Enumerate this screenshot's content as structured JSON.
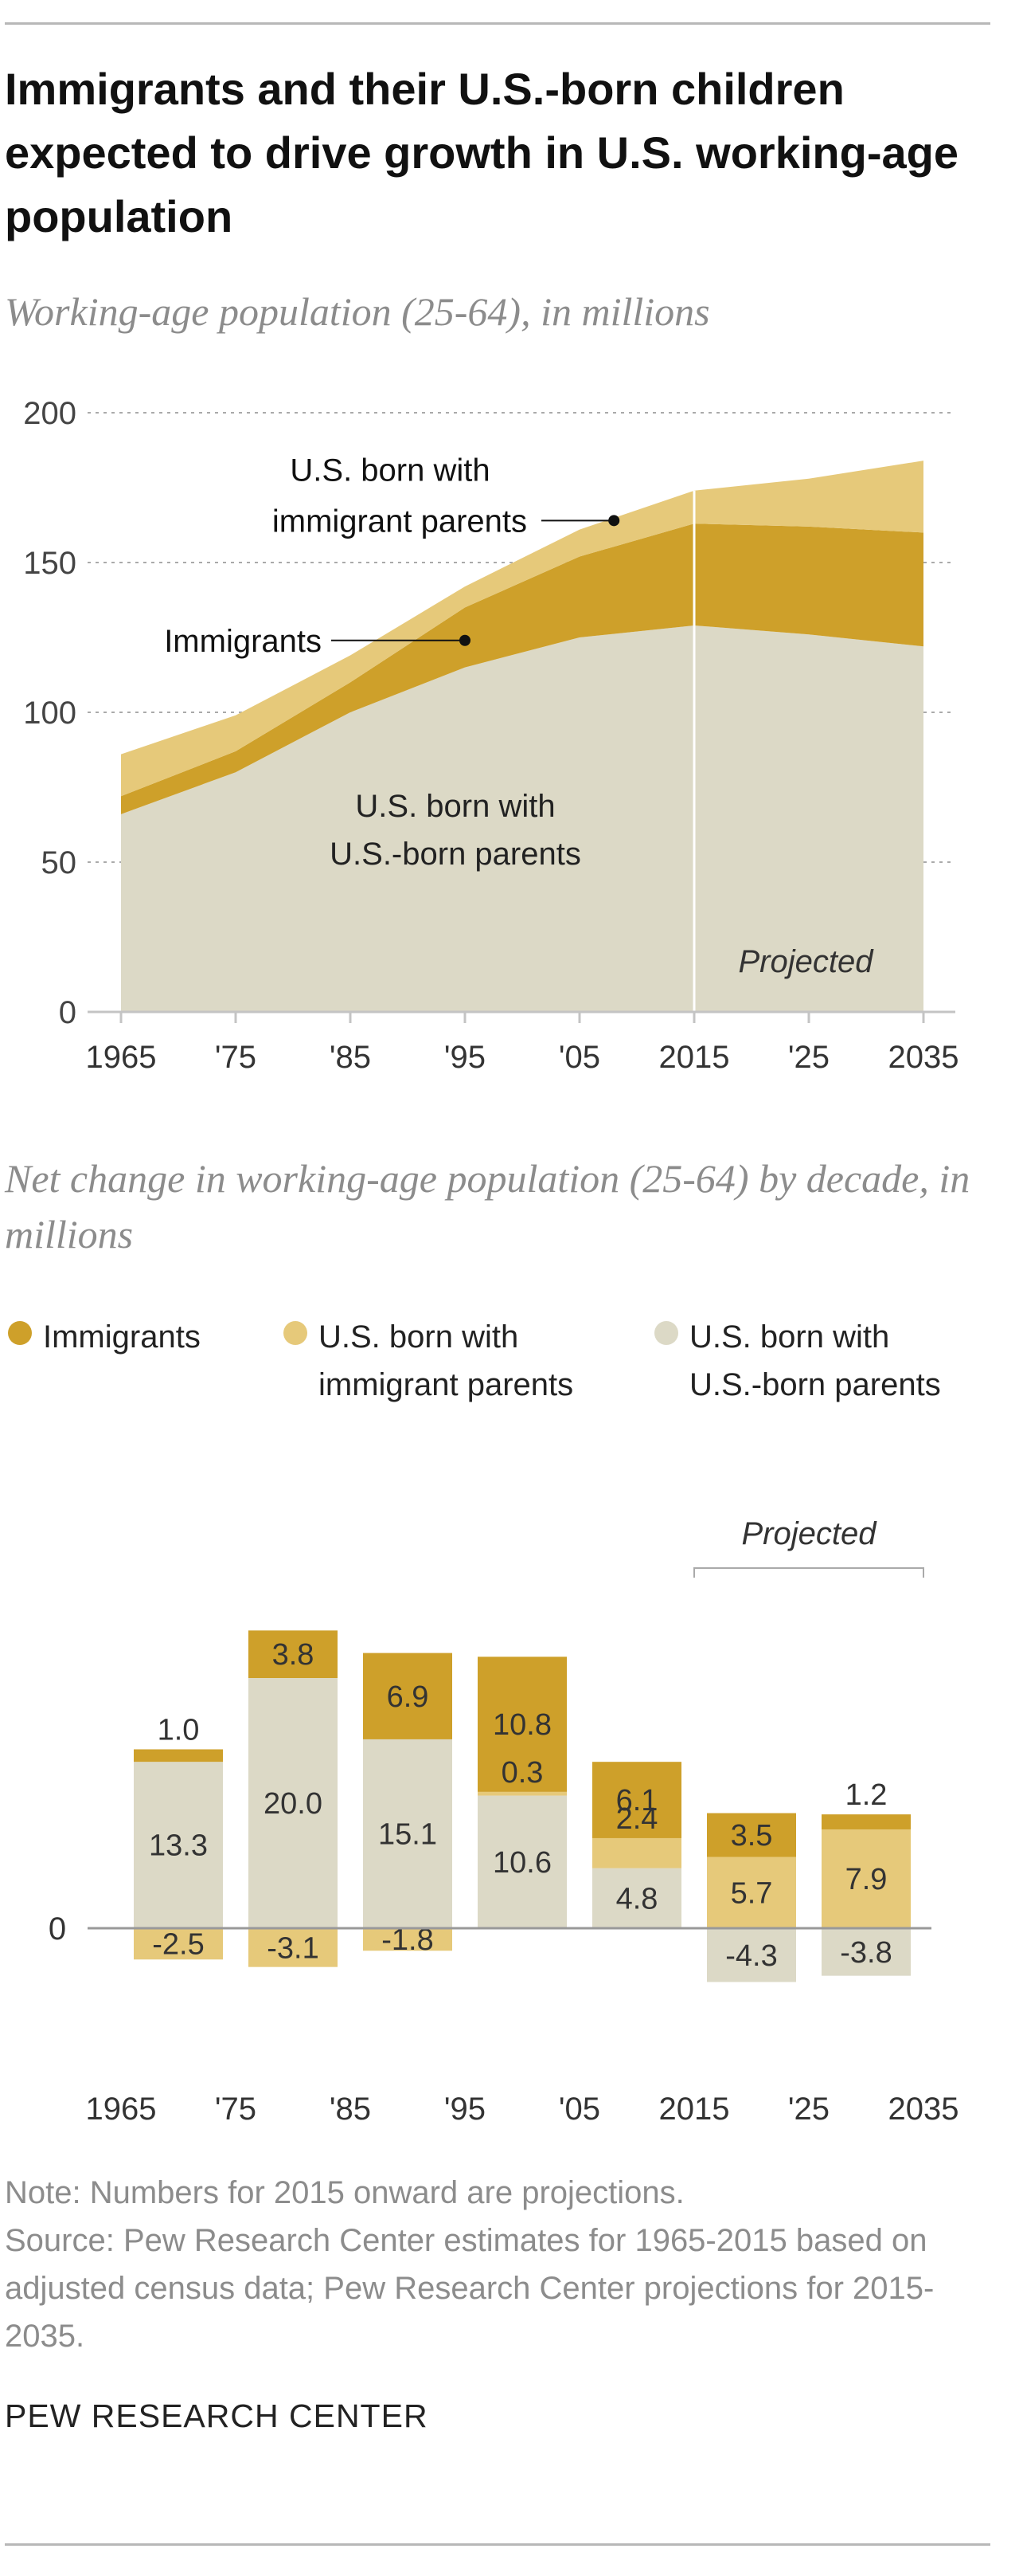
{
  "header": {
    "title": "Immigrants and their U.S.-born children expected to drive growth in U.S. working-age population",
    "subtitle_top": "Working-age population (25-64), in millions",
    "subtitle_bottom": "Net change in working-age population (25-64) by decade, in millions"
  },
  "colors": {
    "immigrants": "#cea02a",
    "immigrant_parents": "#e6c97a",
    "us_parents": "#dcd9c6",
    "grid": "#aaaaaa",
    "axis": "#c4c4c4"
  },
  "chart_data": [
    {
      "type": "area",
      "stacked": true,
      "subtitle": "Working-age population (25-64), in millions",
      "x": [
        1965,
        1975,
        1985,
        1995,
        2005,
        2015,
        2025,
        2035
      ],
      "x_tick_labels": [
        "1965",
        "'75",
        "'85",
        "'95",
        "'05",
        "2015",
        "'25",
        "2035"
      ],
      "ylim": [
        0,
        200
      ],
      "y_ticks": [
        0,
        50,
        100,
        150,
        200
      ],
      "grid": true,
      "projected_from": 2015,
      "projected_label": "Projected",
      "series": [
        {
          "key": "us_parents",
          "values": [
            66,
            80,
            100,
            115,
            125,
            129,
            126,
            122
          ]
        },
        {
          "key": "immigrants",
          "values": [
            6,
            7,
            10,
            20,
            27,
            34,
            36,
            38
          ]
        },
        {
          "key": "immigrant_parents",
          "values": [
            14,
            12,
            9,
            7,
            9,
            11,
            16,
            24
          ]
        }
      ],
      "annotations": [
        {
          "text": "U.S. born with\nimmigrant parents",
          "x": 2008,
          "y": 164
        },
        {
          "text": "Immigrants",
          "x": 1995,
          "y": 124
        },
        {
          "text": "U.S. born with\nU.S.-born parents"
        }
      ]
    },
    {
      "type": "bar",
      "stacked": true,
      "subtitle": "Net change in working-age population (25-64) by decade, in millions",
      "categories": [
        "1965-'75",
        "'75-'85",
        "'85-'95",
        "'95-'05",
        "'05-2015",
        "2015-'25",
        "'25-2035"
      ],
      "x_tick_labels": [
        "1965",
        "'75",
        "'85",
        "'95",
        "'05",
        "2015",
        "'25",
        "2035"
      ],
      "ylim": [
        -7,
        33
      ],
      "zero_label": "0",
      "projected_label": "Projected",
      "projected_categories": [
        5,
        6
      ],
      "series": [
        {
          "name": "U.S. born with U.S.-born parents",
          "key": "us_parents",
          "values": [
            null,
            20.0,
            15.1,
            10.6,
            4.8,
            -4.3,
            -3.8
          ],
          "labels": [
            "",
            "20.0",
            "15.1",
            "10.6",
            "4.8",
            "-4.3",
            "-3.8"
          ]
        },
        {
          "name": "U.S. born with immigrant parents",
          "key": "immigrant_parents",
          "values": [
            -2.5,
            -3.1,
            -1.8,
            0.3,
            2.4,
            5.7,
            7.9
          ],
          "labels": [
            "-2.5",
            "-3.1",
            "-1.8",
            "0.3",
            "2.4",
            "5.7",
            "7.9"
          ]
        },
        {
          "name": "Immigrants",
          "key": "immigrants",
          "values": [
            1.0,
            3.8,
            6.9,
            10.8,
            6.1,
            3.5,
            1.2
          ],
          "labels": [
            "1.0",
            "3.8",
            "6.9",
            "10.8",
            "6.1",
            "3.5",
            "1.2"
          ]
        }
      ],
      "extra_positive_us_parents": {
        "index": 0,
        "value": 13.3,
        "label": "13.3"
      }
    }
  ],
  "legend": [
    {
      "key": "immigrants",
      "label": "Immigrants"
    },
    {
      "key": "immigrant_parents",
      "label": "U.S. born with\nimmigrant parents"
    },
    {
      "key": "us_parents",
      "label": "U.S. born with\nU.S.-born parents"
    }
  ],
  "footer": {
    "note": "Note: Numbers for 2015 onward are projections.",
    "source": "Source: Pew Research Center estimates for 1965-2015 based on adjusted census data; Pew Research Center projections for 2015-2035.",
    "brand": "PEW RESEARCH CENTER"
  }
}
